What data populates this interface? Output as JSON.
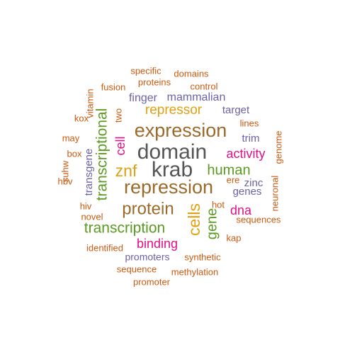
{
  "colors": {
    "gray": "#555555",
    "brown": "#9a6a2a",
    "gold": "#e0a010",
    "green": "#5a9a20",
    "magenta": "#e0108a",
    "purple": "#6a63a8",
    "orange": "#cc5a10"
  },
  "words": [
    {
      "text": "domain",
      "color": "gray"
    },
    {
      "text": "krab",
      "color": "gray"
    },
    {
      "text": "expression",
      "color": "brown"
    },
    {
      "text": "repression",
      "color": "brown"
    },
    {
      "text": "protein",
      "color": "brown"
    },
    {
      "text": "repressor",
      "color": "gold"
    },
    {
      "text": "znf",
      "color": "gold"
    },
    {
      "text": "cells",
      "color": "gold"
    },
    {
      "text": "transcription",
      "color": "green"
    },
    {
      "text": "transcriptional",
      "color": "green"
    },
    {
      "text": "human",
      "color": "green"
    },
    {
      "text": "gene",
      "color": "green"
    },
    {
      "text": "activity",
      "color": "magenta"
    },
    {
      "text": "binding",
      "color": "magenta"
    },
    {
      "text": "dna",
      "color": "magenta"
    },
    {
      "text": "cell",
      "color": "magenta"
    },
    {
      "text": "mammalian",
      "color": "purple"
    },
    {
      "text": "finger",
      "color": "purple"
    },
    {
      "text": "target",
      "color": "purple"
    },
    {
      "text": "trim",
      "color": "purple"
    },
    {
      "text": "zinc",
      "color": "purple"
    },
    {
      "text": "genes",
      "color": "purple"
    },
    {
      "text": "transgene",
      "color": "purple"
    },
    {
      "text": "promoters",
      "color": "purple"
    },
    {
      "text": "specific",
      "color": "orange"
    },
    {
      "text": "domains",
      "color": "orange"
    },
    {
      "text": "proteins",
      "color": "orange"
    },
    {
      "text": "control",
      "color": "orange"
    },
    {
      "text": "fusion",
      "color": "orange"
    },
    {
      "text": "vitamin",
      "color": "orange"
    },
    {
      "text": "two",
      "color": "orange"
    },
    {
      "text": "kox",
      "color": "orange"
    },
    {
      "text": "lines",
      "color": "orange"
    },
    {
      "text": "may",
      "color": "orange"
    },
    {
      "text": "box",
      "color": "orange"
    },
    {
      "text": "genome",
      "color": "orange"
    },
    {
      "text": "suhw",
      "color": "orange"
    },
    {
      "text": "hbv",
      "color": "orange"
    },
    {
      "text": "ere",
      "color": "orange"
    },
    {
      "text": "neuronal",
      "color": "orange"
    },
    {
      "text": "hiv",
      "color": "orange"
    },
    {
      "text": "hot",
      "color": "orange"
    },
    {
      "text": "novel",
      "color": "orange"
    },
    {
      "text": "sequences",
      "color": "orange"
    },
    {
      "text": "kap",
      "color": "orange"
    },
    {
      "text": "identified",
      "color": "orange"
    },
    {
      "text": "synthetic",
      "color": "orange"
    },
    {
      "text": "sequence",
      "color": "orange"
    },
    {
      "text": "methylation",
      "color": "orange"
    },
    {
      "text": "promoter",
      "color": "orange"
    }
  ]
}
